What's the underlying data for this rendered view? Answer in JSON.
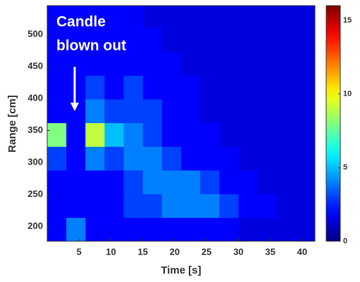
{
  "chart_data": {
    "type": "heatmap",
    "xlabel": "Time [s]",
    "ylabel": "Range [cm]",
    "annotation": [
      "Candle",
      "blown out"
    ],
    "xlim": [
      0,
      42
    ],
    "xticks": [
      5,
      10,
      15,
      20,
      25,
      30,
      35,
      40
    ],
    "ylim": [
      177,
      545
    ],
    "yticks": [
      200,
      250,
      300,
      350,
      400,
      450,
      500
    ],
    "clim": [
      0,
      16
    ],
    "cticks": [
      0,
      5,
      10,
      15
    ],
    "colormap": "jet",
    "x_edges": [
      0,
      3,
      6,
      9,
      12,
      15,
      18,
      21,
      24,
      27,
      30,
      33,
      36,
      39,
      42
    ],
    "y_edges": [
      177,
      214,
      251,
      288,
      325,
      362,
      399,
      436,
      473,
      510,
      545
    ],
    "z": [
      [
        2,
        4,
        2,
        2,
        2,
        2,
        2,
        2,
        2,
        2,
        1.5,
        1.5,
        1.5,
        1.5
      ],
      [
        2,
        2,
        2,
        2,
        3,
        3,
        4,
        4,
        4,
        3,
        2,
        2,
        1.5,
        1.5
      ],
      [
        2,
        2,
        2,
        2,
        3,
        4,
        4,
        4,
        3,
        2,
        2,
        1.5,
        1.5,
        1.5
      ],
      [
        3,
        2,
        4,
        3,
        4,
        4,
        3,
        2,
        2,
        2,
        1.5,
        1.5,
        1.5,
        1.5
      ],
      [
        8,
        2,
        9,
        5,
        4,
        3,
        2,
        2,
        2,
        1.5,
        1.5,
        1.5,
        1.5,
        1.5
      ],
      [
        2,
        2,
        4,
        3,
        3,
        3,
        2,
        2,
        1.5,
        1.5,
        1.5,
        1.5,
        1.5,
        1.5
      ],
      [
        2,
        2,
        3,
        2,
        3,
        2,
        2,
        2,
        1.5,
        1.5,
        1.5,
        1.5,
        1.5,
        1.5
      ],
      [
        2,
        2,
        2,
        2,
        2,
        2,
        2,
        1.5,
        1.5,
        1.5,
        1.5,
        1.5,
        1.5,
        1.5
      ],
      [
        2,
        2,
        2,
        2,
        2,
        2,
        1.5,
        1.5,
        1.5,
        1.5,
        1.5,
        1.5,
        1.5,
        1.5
      ],
      [
        2,
        2,
        2,
        2,
        2,
        1.5,
        1.5,
        1.5,
        1.5,
        1.5,
        1.5,
        1.5,
        1.5,
        1.5
      ]
    ]
  }
}
